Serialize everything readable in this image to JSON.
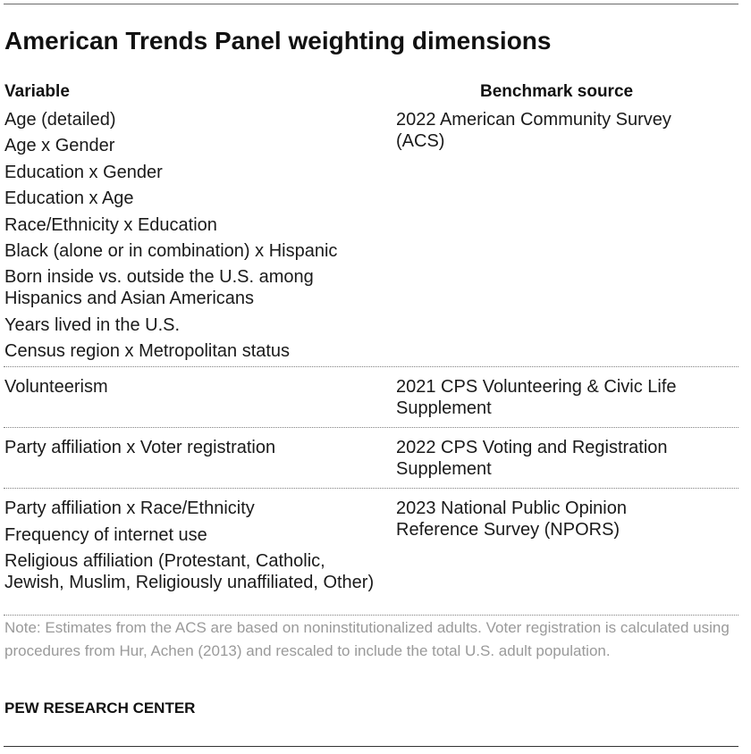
{
  "title": "American Trends Panel weighting dimensions",
  "headers": {
    "variable": "Variable",
    "benchmark": "Benchmark source"
  },
  "groups": [
    {
      "variables": [
        "Age (detailed)",
        "Age x Gender",
        "Education x Gender",
        "Education x Age",
        "Race/Ethnicity x Education",
        "Black (alone or in combination) x Hispanic",
        "Born inside vs. outside the U.S. among Hispanics and Asian Americans",
        "Years lived in the U.S.",
        "Census region x Metropolitan status"
      ],
      "source": "2022 American Community Survey (ACS)"
    },
    {
      "variables": [
        "Volunteerism"
      ],
      "source": "2021 CPS Volunteering & Civic Life Supplement"
    },
    {
      "variables": [
        "Party affiliation x Voter registration"
      ],
      "source": "2022 CPS Voting and Registration Supplement"
    },
    {
      "variables": [
        "Party affiliation x Race/Ethnicity",
        "Frequency of internet use",
        "Religious affiliation (Protestant, Catholic, Jewish, Muslim, Religiously unaffiliated, Other)"
      ],
      "source": "2023 National Public Opinion Reference Survey (NPORS)"
    }
  ],
  "note": "Note: Estimates from the ACS are based on noninstitutionalized adults. Voter registration is calculated using procedures from Hur, Achen (2013) and rescaled to include the total U.S. adult population.",
  "source_credit": "PEW RESEARCH CENTER"
}
